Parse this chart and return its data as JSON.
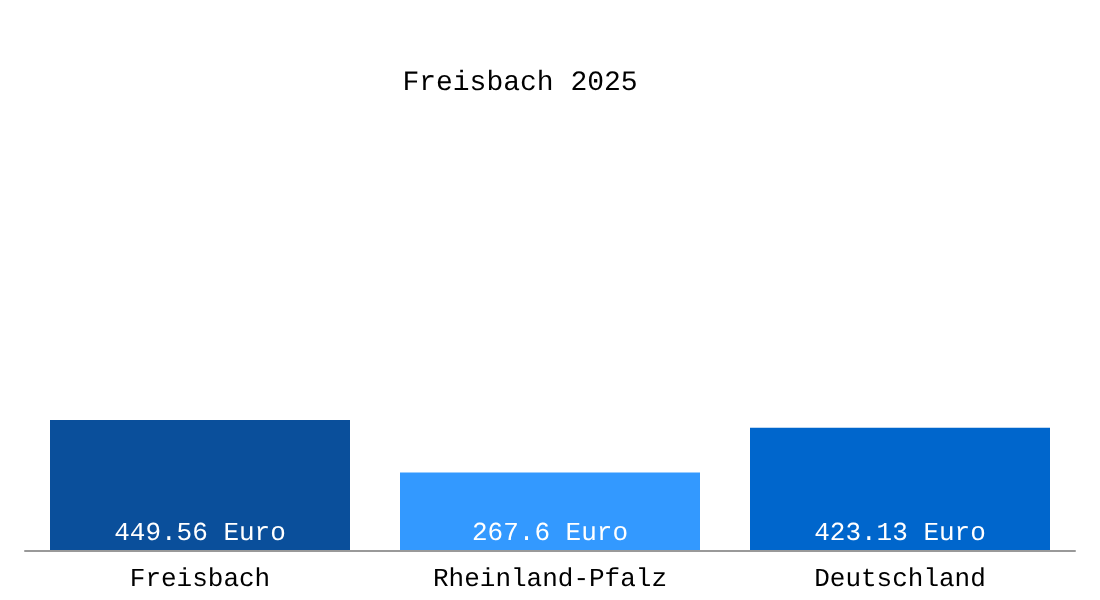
{
  "chart_data": {
    "type": "bar",
    "title": "Freisbach 2025",
    "categories": [
      "Freisbach",
      "Rheinland-Pfalz",
      "Deutschland"
    ],
    "values": [
      449.56,
      267.6,
      423.13
    ],
    "colors": [
      "#0a4f9b",
      "#3399ff",
      "#0066cc"
    ],
    "value_labels": [
      "449.56 Euro",
      "267.6 Euro",
      "423.13 Euro"
    ]
  }
}
